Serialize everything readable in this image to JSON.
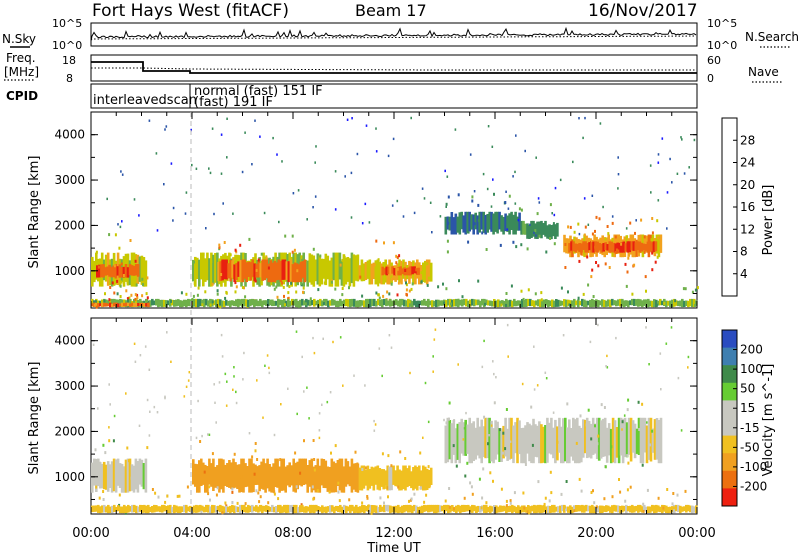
{
  "header": {
    "station": "Fort Hays West (fitACF)",
    "beam": "Beam 17",
    "date": "16/Nov/2017"
  },
  "strips": {
    "nsky_label": "N.Sky",
    "nsearch_label": "N.Search",
    "noise_ticks": [
      "10^5",
      "10^0"
    ],
    "freq_label_line1": "Freq.",
    "freq_label_line2": "[MHz]",
    "freq_ticks": [
      "18",
      "8"
    ],
    "nave_label": "Nave",
    "nave_ticks": [
      "60",
      "0"
    ],
    "cpid_label": "CPID",
    "cpid_names": [
      "interleavedscan",
      "normal (fast) 151 IF",
      "(fast) 191 IF"
    ]
  },
  "x_axis": {
    "label": "Time UT",
    "ticks": [
      "00:00",
      "04:00",
      "08:00",
      "12:00",
      "16:00",
      "20:00",
      "00:00"
    ],
    "range_hours": [
      0,
      24
    ]
  },
  "colors": {
    "power": [
      "#1a1aff",
      "#2b55a8",
      "#3a8a5a",
      "#6fb04a",
      "#c8c800",
      "#f2a21e",
      "#ee6a10",
      "#e82010"
    ],
    "velocity_pos": [
      "#2a4cc0",
      "#3f7fb0",
      "#3f8a4a",
      "#66cc33"
    ],
    "velocity_neg": [
      "#f0c020",
      "#f0a020",
      "#ec7010",
      "#ee2010"
    ],
    "velocity_mid": "#c8c8c0"
  },
  "chart_data": [
    {
      "type": "heatmap",
      "title": "",
      "xlabel": "",
      "ylabel": "Slant Range [km]",
      "ylim": [
        180,
        4500
      ],
      "y_ticks": [
        "1000",
        "2000",
        "3000",
        "4000"
      ],
      "colorbar_label": "Power [dB]",
      "colorbar_ticks": [
        "4",
        "8",
        "12",
        "16",
        "20",
        "24",
        "28"
      ],
      "colorbar_range": [
        0,
        32
      ],
      "regions": [
        {
          "t0": 0.0,
          "t1": 2.2,
          "r0": 650,
          "r1": 1400,
          "value": 18
        },
        {
          "t0": 0.2,
          "t1": 1.9,
          "r0": 850,
          "r1": 1150,
          "value": 27
        },
        {
          "t0": 4.0,
          "t1": 10.6,
          "r0": 650,
          "r1": 1400,
          "value": 17
        },
        {
          "t0": 5.0,
          "t1": 8.5,
          "r0": 750,
          "r1": 1250,
          "value": 26
        },
        {
          "t0": 10.6,
          "t1": 13.5,
          "r0": 700,
          "r1": 1250,
          "value": 20
        },
        {
          "t0": 11.5,
          "t1": 13.0,
          "r0": 900,
          "r1": 1100,
          "value": 26
        },
        {
          "t0": 14.0,
          "t1": 17.0,
          "r0": 1800,
          "r1": 2300,
          "value": 9
        },
        {
          "t0": 17.0,
          "t1": 18.5,
          "r0": 1700,
          "r1": 2100,
          "value": 11
        },
        {
          "t0": 18.7,
          "t1": 22.6,
          "r0": 1300,
          "r1": 1800,
          "value": 22
        },
        {
          "t0": 18.9,
          "t1": 22.4,
          "r0": 1400,
          "r1": 1650,
          "value": 27
        },
        {
          "t0": 0.0,
          "t1": 24.0,
          "r0": 200,
          "r1": 380,
          "value": 14
        },
        {
          "t0": 0.0,
          "t1": 2.3,
          "r0": 200,
          "r1": 300,
          "value": 26
        }
      ]
    },
    {
      "type": "heatmap",
      "title": "",
      "xlabel": "Time UT",
      "ylabel": "Slant Range [km]",
      "ylim": [
        180,
        4500
      ],
      "y_ticks": [
        "1000",
        "2000",
        "3000",
        "4000"
      ],
      "colorbar_label": "Velocity [m s^-1]",
      "colorbar_ticks": [
        "200",
        "100",
        "50",
        "15",
        "-15",
        "-50",
        "-100",
        "-200"
      ],
      "regions": [
        {
          "t0": 0.0,
          "t1": 2.2,
          "r0": 650,
          "r1": 1400,
          "value": 0
        },
        {
          "t0": 4.0,
          "t1": 10.6,
          "r0": 650,
          "r1": 1400,
          "value": -70
        },
        {
          "t0": 10.6,
          "t1": 13.5,
          "r0": 700,
          "r1": 1250,
          "value": -30
        },
        {
          "t0": 14.0,
          "t1": 22.6,
          "r0": 1300,
          "r1": 2300,
          "value": 0
        },
        {
          "t0": 0.0,
          "t1": 24.0,
          "r0": 200,
          "r1": 380,
          "value": -30
        }
      ]
    }
  ]
}
